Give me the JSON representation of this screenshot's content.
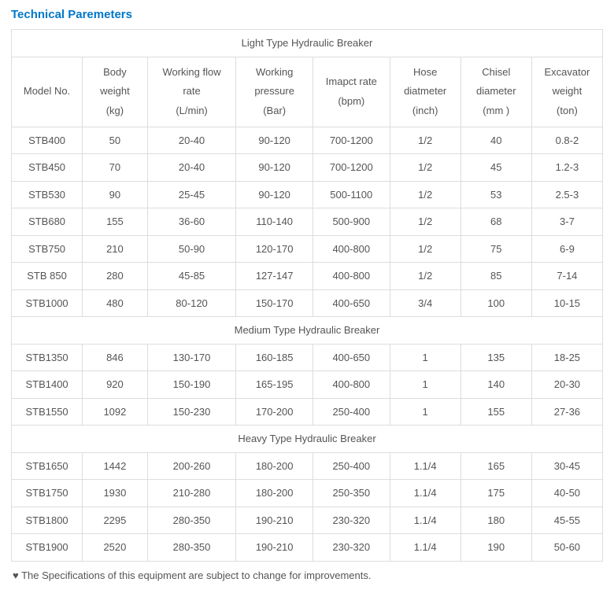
{
  "title": "Technical Paremeters",
  "columns": [
    "Model No.",
    "Body weight (kg)",
    "Working flow rate (L/min)",
    "Working pressure (Bar)",
    "Imapct rate (bpm)",
    "Hose diatmeter (inch)",
    "Chisel diameter (mm )",
    "Excavator weight (ton)"
  ],
  "col_widths": [
    "12%",
    "11%",
    "15%",
    "13%",
    "13%",
    "12%",
    "12%",
    "12%"
  ],
  "sections": [
    {
      "label": "Light Type Hydraulic Breaker",
      "rows": [
        [
          "STB400",
          "50",
          "20-40",
          "90-120",
          "700-1200",
          "1/2",
          "40",
          "0.8-2"
        ],
        [
          "STB450",
          "70",
          "20-40",
          "90-120",
          "700-1200",
          "1/2",
          "45",
          "1.2-3"
        ],
        [
          "STB530",
          "90",
          "25-45",
          "90-120",
          "500-1100",
          "1/2",
          "53",
          "2.5-3"
        ],
        [
          "STB680",
          "155",
          "36-60",
          "110-140",
          "500-900",
          "1/2",
          "68",
          "3-7"
        ],
        [
          "STB750",
          "210",
          "50-90",
          "120-170",
          "400-800",
          "1/2",
          "75",
          "6-9"
        ],
        [
          "STB 850",
          "280",
          "45-85",
          "127-147",
          "400-800",
          "1/2",
          "85",
          "7-14"
        ],
        [
          "STB1000",
          "480",
          "80-120",
          "150-170",
          "400-650",
          "3/4",
          "100",
          "10-15"
        ]
      ]
    },
    {
      "label": "Medium Type Hydraulic Breaker",
      "rows": [
        [
          "STB1350",
          "846",
          "130-170",
          "160-185",
          "400-650",
          "1",
          "135",
          "18-25"
        ],
        [
          "STB1400",
          "920",
          "150-190",
          "165-195",
          "400-800",
          "1",
          "140",
          "20-30"
        ],
        [
          "STB1550",
          "1092",
          "150-230",
          "170-200",
          "250-400",
          "1",
          "155",
          "27-36"
        ]
      ]
    },
    {
      "label": "Heavy Type Hydraulic Breaker",
      "rows": [
        [
          "STB1650",
          "1442",
          "200-260",
          "180-200",
          "250-400",
          "1.1/4",
          "165",
          "30-45"
        ],
        [
          "STB1750",
          "1930",
          "210-280",
          "180-200",
          "250-350",
          "1.1/4",
          "175",
          "40-50"
        ],
        [
          "STB1800",
          "2295",
          "280-350",
          "190-210",
          "230-320",
          "1.1/4",
          "180",
          "45-55"
        ],
        [
          "STB1900",
          "2520",
          "280-350",
          "190-210",
          "230-320",
          "1.1/4",
          "190",
          "50-60"
        ]
      ]
    }
  ],
  "footnote": "♥ The Specifications of this equipment are subject to change for improvements.",
  "colors": {
    "title": "#0077c8",
    "border": "#dddddd",
    "text": "#555555",
    "background": "#ffffff"
  }
}
